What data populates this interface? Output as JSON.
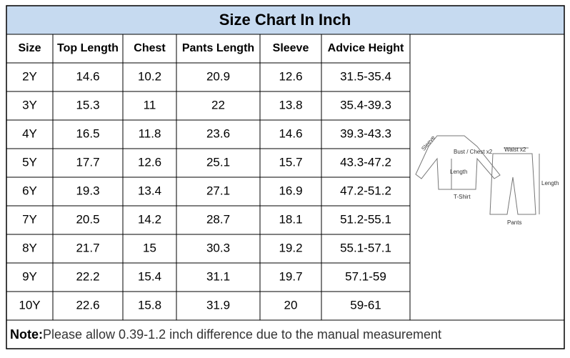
{
  "header": {
    "title": "Size Chart In Inch"
  },
  "table": {
    "columns": [
      "Size",
      "Top Length",
      "Chest",
      "Pants Length",
      "Sleeve",
      "Advice Height"
    ],
    "rows": [
      [
        "2Y",
        "14.6",
        "10.2",
        "20.9",
        "12.6",
        "31.5-35.4"
      ],
      [
        "3Y",
        "15.3",
        "11",
        "22",
        "13.8",
        "35.4-39.3"
      ],
      [
        "4Y",
        "16.5",
        "11.8",
        "23.6",
        "14.6",
        "39.3-43.3"
      ],
      [
        "5Y",
        "17.7",
        "12.6",
        "25.1",
        "15.7",
        "43.3-47.2"
      ],
      [
        "6Y",
        "19.3",
        "13.4",
        "27.1",
        "16.9",
        "47.2-51.2"
      ],
      [
        "7Y",
        "20.5",
        "14.2",
        "28.7",
        "18.1",
        "51.2-55.1"
      ],
      [
        "8Y",
        "21.7",
        "15",
        "30.3",
        "19.2",
        "55.1-57.1"
      ],
      [
        "9Y",
        "22.2",
        "15.4",
        "31.1",
        "19.7",
        "57.1-59"
      ],
      [
        "10Y",
        "22.6",
        "15.8",
        "31.9",
        "20",
        "59-61"
      ]
    ]
  },
  "diagram": {
    "sleeve": "Sleeve",
    "bust": "Bust / Chest x2",
    "top_length": "Length",
    "tshirt": "T-Shirt",
    "waist": "Waist x2",
    "pants_length": "Length",
    "pants": "Pants"
  },
  "note": {
    "label": "Note:",
    "text": "Please allow 0.39-1.2 inch difference due to the manual measurement"
  }
}
